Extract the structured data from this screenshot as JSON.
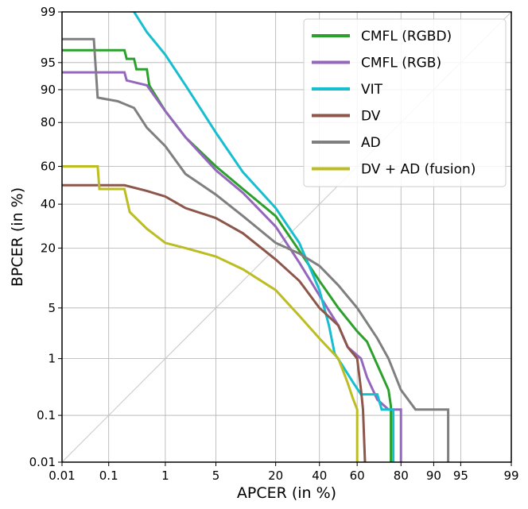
{
  "chart_data": {
    "type": "line",
    "title": "",
    "xlabel": "APCER (in %)",
    "ylabel": "BPCER (in %)",
    "scale": "normal-deviate (DET)",
    "xlim": [
      0.01,
      99
    ],
    "ylim": [
      0.01,
      99
    ],
    "grid": true,
    "legend_position": "top-right",
    "x_ticks": [
      "0.01",
      "0.1",
      "1",
      "5",
      "20",
      "40",
      "60",
      "80",
      "90",
      "95",
      "99"
    ],
    "x_tick_values": [
      0.01,
      0.1,
      1,
      5,
      20,
      40,
      60,
      80,
      90,
      95,
      99
    ],
    "y_ticks": [
      "0.01",
      "0.1",
      "1",
      "5",
      "20",
      "40",
      "60",
      "80",
      "90",
      "95",
      "99"
    ],
    "y_tick_values": [
      0.01,
      0.1,
      1,
      5,
      20,
      40,
      60,
      80,
      90,
      95,
      99
    ],
    "series": [
      {
        "name": "CMFL (RGBD)",
        "color": "#2ca02c",
        "points": [
          [
            0.01,
            96.5
          ],
          [
            0.2,
            96.5
          ],
          [
            0.22,
            95.5
          ],
          [
            0.3,
            95.5
          ],
          [
            0.33,
            94
          ],
          [
            0.5,
            94
          ],
          [
            0.55,
            91
          ],
          [
            1,
            84
          ],
          [
            2,
            74
          ],
          [
            5,
            60
          ],
          [
            10,
            48
          ],
          [
            20,
            34
          ],
          [
            30,
            19
          ],
          [
            40,
            10
          ],
          [
            50,
            5
          ],
          [
            60,
            2.5
          ],
          [
            65,
            1.8
          ],
          [
            70,
            0.8
          ],
          [
            75,
            0.3
          ],
          [
            76,
            0.15
          ],
          [
            76,
            0.01
          ]
        ]
      },
      {
        "name": "CMFL (RGB)",
        "color": "#9467bd",
        "points": [
          [
            0.01,
            93.5
          ],
          [
            0.2,
            93.5
          ],
          [
            0.22,
            92
          ],
          [
            0.5,
            91
          ],
          [
            1,
            84
          ],
          [
            2,
            74
          ],
          [
            5,
            58
          ],
          [
            10,
            46
          ],
          [
            20,
            29
          ],
          [
            30,
            15
          ],
          [
            40,
            7
          ],
          [
            50,
            3
          ],
          [
            55,
            1.5
          ],
          [
            62,
            1
          ],
          [
            65,
            0.5
          ],
          [
            70,
            0.2
          ],
          [
            75,
            0.13
          ],
          [
            80,
            0.13
          ],
          [
            80,
            0.01
          ]
        ]
      },
      {
        "name": "VIT",
        "color": "#17becf",
        "points": [
          [
            0.3,
            99
          ],
          [
            0.5,
            98
          ],
          [
            1,
            96
          ],
          [
            2,
            91
          ],
          [
            5,
            76
          ],
          [
            10,
            57
          ],
          [
            20,
            38
          ],
          [
            30,
            22
          ],
          [
            40,
            8
          ],
          [
            45,
            3
          ],
          [
            48,
            1.2
          ],
          [
            52,
            0.8
          ],
          [
            58,
            0.4
          ],
          [
            62,
            0.25
          ],
          [
            70,
            0.25
          ],
          [
            72,
            0.13
          ],
          [
            77,
            0.13
          ],
          [
            77,
            0.01
          ]
        ]
      },
      {
        "name": "DV",
        "color": "#8c564b",
        "points": [
          [
            0.01,
            50
          ],
          [
            0.2,
            50
          ],
          [
            0.5,
            47
          ],
          [
            1,
            44
          ],
          [
            2,
            38
          ],
          [
            5,
            33
          ],
          [
            10,
            26
          ],
          [
            20,
            16
          ],
          [
            30,
            10
          ],
          [
            40,
            5
          ],
          [
            50,
            3
          ],
          [
            55,
            1.5
          ],
          [
            60,
            1
          ],
          [
            62,
            0.3
          ],
          [
            63,
            0.13
          ],
          [
            64,
            0.01
          ]
        ]
      },
      {
        "name": "AD",
        "color": "#7f7f7f",
        "points": [
          [
            0.01,
            97.5
          ],
          [
            0.05,
            97.5
          ],
          [
            0.06,
            88
          ],
          [
            0.15,
            87
          ],
          [
            0.3,
            85
          ],
          [
            0.5,
            78
          ],
          [
            1,
            70
          ],
          [
            2,
            56
          ],
          [
            5,
            45
          ],
          [
            10,
            34
          ],
          [
            20,
            22
          ],
          [
            30,
            18
          ],
          [
            40,
            14
          ],
          [
            50,
            9
          ],
          [
            60,
            5
          ],
          [
            70,
            2
          ],
          [
            75,
            1
          ],
          [
            80,
            0.3
          ],
          [
            85,
            0.13
          ],
          [
            93,
            0.13
          ],
          [
            93,
            0.01
          ]
        ]
      },
      {
        "name": "DV + AD (fusion)",
        "color": "#bcbd22",
        "points": [
          [
            0.01,
            60
          ],
          [
            0.06,
            60
          ],
          [
            0.065,
            48
          ],
          [
            0.2,
            48
          ],
          [
            0.25,
            36
          ],
          [
            0.5,
            28
          ],
          [
            1,
            22
          ],
          [
            2,
            20
          ],
          [
            5,
            17
          ],
          [
            10,
            13
          ],
          [
            20,
            8
          ],
          [
            30,
            4
          ],
          [
            40,
            2
          ],
          [
            50,
            1
          ],
          [
            55,
            0.4
          ],
          [
            58,
            0.2
          ],
          [
            60,
            0.13
          ],
          [
            60,
            0.01
          ]
        ]
      }
    ]
  }
}
